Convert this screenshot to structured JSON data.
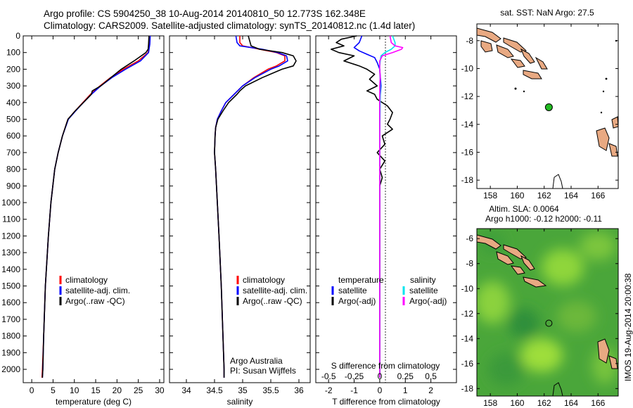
{
  "header": {
    "title_line1": "Argo profile: CS 5904250_38 10-Aug-2014 20140810_50 12.773S 162.348E",
    "title_line2": "Climatology: CARS2009. Satellite-adjusted climatology: synTS_20140812.nc (1.4d later)"
  },
  "colors": {
    "climatology": "#ff0000",
    "satellite": "#0000ff",
    "argo": "#000000",
    "satellite_salinity": "#00e5ee",
    "argo_salinity_adj": "#ff00ff",
    "land": "#e8a982",
    "marker": "#22bb22"
  },
  "side_label": "IMOS 19-Aug-2014 20:00:38",
  "chart_data": [
    {
      "id": "temperature",
      "type": "line",
      "xlabel": "temperature (deg C)",
      "ylabel": "",
      "xlim": [
        -2,
        31
      ],
      "ylim": [
        2080,
        0
      ],
      "xticks": [
        0,
        5,
        10,
        15,
        20,
        25,
        30
      ],
      "yticks": [
        0,
        100,
        200,
        300,
        400,
        500,
        600,
        700,
        800,
        900,
        1000,
        1100,
        1200,
        1300,
        1400,
        1500,
        1600,
        1700,
        1800,
        1900,
        2000
      ],
      "legend": [
        "climatology",
        "satellite-adj. clim.",
        "Argo(..raw -QC)"
      ],
      "series": [
        {
          "name": "climatology",
          "color": "#ff0000",
          "depth": [
            0,
            50,
            100,
            150,
            200,
            250,
            300,
            350,
            400,
            450,
            500,
            600,
            700,
            800,
            1000,
            1200,
            1500,
            1800,
            2000,
            2050
          ],
          "values": [
            27.6,
            27.5,
            27.3,
            25.0,
            21.5,
            18.5,
            16.0,
            13.8,
            12.0,
            10.2,
            8.5,
            7.2,
            6.2,
            5.4,
            4.5,
            3.9,
            3.2,
            2.8,
            2.5,
            2.4
          ]
        },
        {
          "name": "satellite-adj. clim.",
          "color": "#0000ff",
          "depth": [
            0,
            50,
            100,
            150,
            200,
            250,
            300,
            350,
            400,
            450,
            500,
            600,
            700,
            800,
            1000,
            1200,
            1500,
            1800,
            2000,
            2050
          ],
          "values": [
            27.8,
            27.7,
            27.4,
            25.5,
            22.0,
            18.8,
            16.2,
            14.0,
            12.1,
            10.3,
            8.6,
            7.2,
            6.2,
            5.4,
            4.5,
            3.9,
            3.2,
            2.8,
            2.6,
            2.5
          ]
        },
        {
          "name": "Argo(..raw -QC)",
          "color": "#000000",
          "depth": [
            0,
            50,
            80,
            100,
            150,
            200,
            250,
            300,
            330,
            350,
            400,
            450,
            500,
            600,
            700,
            800,
            1000,
            1200,
            1500,
            1800,
            2000,
            2050
          ],
          "values": [
            27.5,
            27.4,
            27.3,
            26.8,
            24.0,
            21.0,
            18.6,
            16.2,
            14.2,
            14.0,
            12.1,
            10.2,
            8.5,
            7.2,
            6.2,
            5.4,
            4.5,
            3.9,
            3.2,
            2.8,
            2.6,
            2.5
          ]
        }
      ]
    },
    {
      "id": "salinity",
      "type": "line",
      "xlabel": "salinity",
      "xlim": [
        33.7,
        36.2
      ],
      "ylim": [
        2080,
        0
      ],
      "xticks": [
        34,
        34.5,
        35,
        35.5,
        36
      ],
      "legend": [
        "climatology",
        "satellite-adj. clim.",
        "Argo(..raw -QC)"
      ],
      "annotation": [
        "Argo Australia",
        "PI: Susan Wijffels"
      ],
      "series": [
        {
          "name": "climatology",
          "color": "#ff0000",
          "depth": [
            0,
            40,
            60,
            80,
            100,
            120,
            150,
            180,
            200,
            250,
            300,
            350,
            400,
            450,
            500,
            550,
            600,
            700,
            800,
            1000,
            1200,
            1500,
            1800,
            2000,
            2050
          ],
          "values": [
            34.95,
            34.95,
            35.0,
            35.3,
            35.6,
            35.75,
            35.75,
            35.6,
            35.45,
            35.2,
            35.0,
            34.85,
            34.7,
            34.62,
            34.55,
            34.52,
            34.51,
            34.5,
            34.52,
            34.55,
            34.58,
            34.62,
            34.65,
            34.67,
            34.67
          ]
        },
        {
          "name": "satellite-adj. clim.",
          "color": "#0000ff",
          "depth": [
            0,
            40,
            60,
            80,
            100,
            120,
            150,
            180,
            200,
            250,
            300,
            350,
            400,
            450,
            500,
            550,
            600,
            700,
            800,
            1000,
            1200,
            1500,
            1800,
            2000,
            2050
          ],
          "values": [
            34.88,
            34.9,
            34.95,
            35.35,
            35.62,
            35.78,
            35.8,
            35.65,
            35.5,
            35.22,
            35.0,
            34.85,
            34.7,
            34.62,
            34.55,
            34.52,
            34.51,
            34.5,
            34.52,
            34.55,
            34.58,
            34.62,
            34.65,
            34.67,
            34.67
          ]
        },
        {
          "name": "Argo(..raw -QC)",
          "color": "#000000",
          "depth": [
            0,
            60,
            80,
            100,
            120,
            150,
            180,
            200,
            250,
            300,
            330,
            350,
            400,
            450,
            500,
            550,
            600,
            700,
            800,
            1000,
            1200,
            1500,
            1800,
            2000,
            2050
          ],
          "values": [
            35.1,
            35.15,
            35.3,
            35.7,
            35.9,
            35.95,
            35.9,
            35.7,
            35.35,
            35.05,
            34.95,
            34.9,
            34.75,
            34.65,
            34.56,
            34.52,
            34.51,
            34.5,
            34.52,
            34.55,
            34.58,
            34.62,
            34.65,
            34.67,
            34.67
          ]
        }
      ]
    },
    {
      "id": "difference",
      "type": "line",
      "xlabel": "T difference from climatology",
      "xlabel_top": "S difference from climatology",
      "xlim": [
        -2.5,
        3
      ],
      "ylim": [
        2080,
        0
      ],
      "xticks": [
        -2,
        -1,
        0,
        1,
        2
      ],
      "top_ticks": [
        "-0.5",
        "-0.25",
        "0",
        "0.25",
        "0.5"
      ],
      "legend_temperature_title": "temperature",
      "legend_salinity_title": "salinity",
      "legend_temperature": [
        "satellite",
        "Argo(-adj)"
      ],
      "legend_salinity": [
        "satellite",
        "Argo(-adj)"
      ],
      "series": [
        {
          "name": "T satellite",
          "color": "#0000ff",
          "depth": [
            0,
            40,
            70,
            90,
            110,
            130,
            160,
            200,
            300,
            400,
            500,
            600,
            800,
            1000,
            1500,
            2050
          ],
          "values": [
            -0.7,
            -0.8,
            -1.0,
            -0.8,
            -0.5,
            -0.2,
            -0.1,
            0.0,
            0.05,
            0.0,
            0.0,
            0.0,
            0.0,
            0.0,
            0.0,
            0.0
          ]
        },
        {
          "name": "T Argo(-adj)",
          "color": "#000000",
          "depth": [
            0,
            20,
            40,
            60,
            80,
            100,
            120,
            150,
            180,
            200,
            230,
            260,
            300,
            330,
            350,
            380,
            420,
            460,
            500,
            530,
            560,
            600,
            650,
            700,
            750,
            800,
            850,
            900,
            1000,
            1200,
            1500,
            2050
          ],
          "values": [
            -0.9,
            -1.5,
            -1.7,
            -1.4,
            -1.9,
            -1.6,
            -1.0,
            -1.4,
            -0.8,
            -0.5,
            -0.2,
            -0.4,
            -0.1,
            -0.5,
            -0.2,
            -0.1,
            0.3,
            0.5,
            0.4,
            0.3,
            0.5,
            0.1,
            0.2,
            -0.1,
            0.2,
            0.0,
            0.1,
            0.0,
            0.0,
            0.0,
            0.0,
            0.0
          ]
        },
        {
          "name": "S satellite",
          "color": "#00e5ee",
          "depth": [
            0,
            40,
            60,
            80,
            100,
            120,
            150,
            180,
            200,
            250,
            300,
            400,
            500,
            600,
            800,
            1000,
            1500,
            2050
          ],
          "values": [
            0.5,
            0.6,
            0.6,
            0.45,
            0.2,
            0.05,
            0.02,
            0.0,
            0.0,
            0.01,
            0.02,
            0.02,
            0.01,
            0.0,
            0.0,
            0.0,
            0.0,
            0.0
          ]
        },
        {
          "name": "S Argo(-adj)",
          "color": "#ff00ff",
          "depth": [
            0,
            40,
            60,
            70,
            80,
            100,
            120,
            150,
            200,
            250,
            300,
            400,
            500,
            600,
            800,
            1000,
            1500,
            2050
          ],
          "values": [
            0.4,
            0.45,
            0.6,
            0.9,
            0.85,
            0.5,
            0.1,
            0.0,
            0.0,
            0.02,
            0.0,
            0.0,
            0.0,
            0.0,
            0.0,
            0.0,
            0.0,
            0.0
          ]
        }
      ]
    },
    {
      "id": "sst_map",
      "type": "scatter",
      "title": "sat. SST: NaN Argo: 27.5",
      "xlim": [
        157,
        167.5
      ],
      "ylim": [
        -18.6,
        -6.8
      ],
      "xticks": [
        158,
        160,
        162,
        164,
        166
      ],
      "yticks": [
        -8,
        -10,
        -12,
        -14,
        -16,
        -18
      ],
      "x": [
        162.348
      ],
      "y": [
        -12.773
      ]
    },
    {
      "id": "sla_map",
      "type": "heatmap",
      "title_line1": "Altim. SLA: 0.0064",
      "title_line2": "Argo h1000: -0.12 h2000: -0.11",
      "xlim": [
        157,
        167.5
      ],
      "ylim": [
        -18.6,
        -5.2
      ],
      "xticks": [
        158,
        160,
        162,
        164,
        166
      ],
      "yticks": [
        -6,
        -8,
        -10,
        -12,
        -14,
        -16,
        -18
      ],
      "x": [
        162.348
      ],
      "y": [
        -12.773
      ]
    }
  ]
}
